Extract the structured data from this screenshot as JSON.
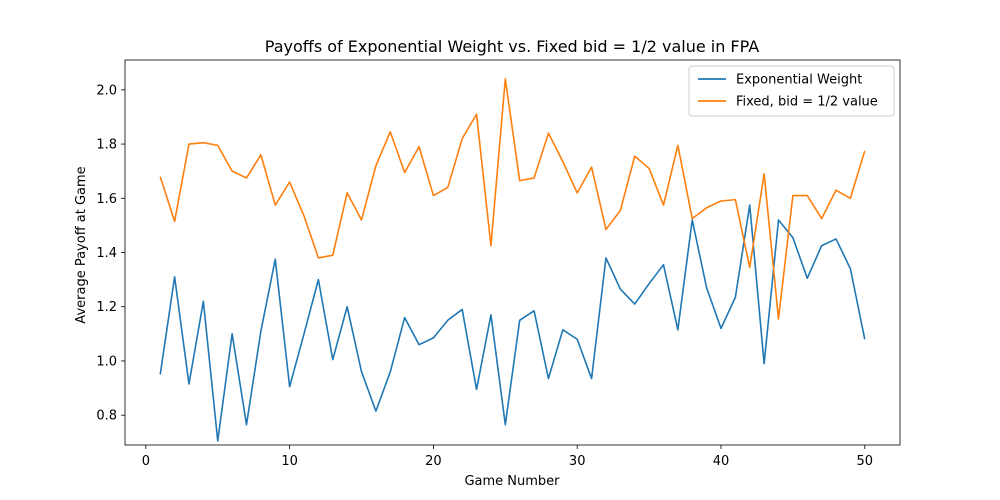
{
  "chart_data": {
    "type": "line",
    "title": "Payoffs of Exponential Weight vs. Fixed bid = 1/2 value in FPA",
    "xlabel": "Game Number",
    "ylabel": "Average Payoff at Game",
    "xlim": [
      -1.45,
      52.45
    ],
    "ylim": [
      0.69,
      2.11
    ],
    "xticks": [
      0,
      10,
      20,
      30,
      40,
      50
    ],
    "yticks": [
      0.8,
      1.0,
      1.2,
      1.4,
      1.6,
      1.8,
      2.0
    ],
    "xtick_labels": [
      "0",
      "10",
      "20",
      "30",
      "40",
      "50"
    ],
    "ytick_labels": [
      "0.8",
      "1.0",
      "1.2",
      "1.4",
      "1.6",
      "1.8",
      "2.0"
    ],
    "grid": false,
    "legend_position": "top-right",
    "x": [
      1,
      2,
      3,
      4,
      5,
      6,
      7,
      8,
      9,
      10,
      11,
      12,
      13,
      14,
      15,
      16,
      17,
      18,
      19,
      20,
      21,
      22,
      23,
      24,
      25,
      26,
      27,
      28,
      29,
      30,
      31,
      32,
      33,
      34,
      35,
      36,
      37,
      38,
      39,
      40,
      41,
      42,
      43,
      44,
      45,
      46,
      47,
      48,
      49,
      50
    ],
    "series": [
      {
        "name": "Exponential Weight",
        "color": "#1f77b4",
        "values": [
          0.95,
          1.31,
          0.915,
          1.22,
          0.705,
          1.1,
          0.765,
          1.11,
          1.375,
          0.905,
          1.1,
          1.3,
          1.005,
          1.2,
          0.96,
          0.815,
          0.96,
          1.16,
          1.06,
          1.085,
          1.15,
          1.19,
          0.895,
          1.17,
          0.765,
          1.15,
          1.185,
          0.935,
          1.115,
          1.08,
          0.935,
          1.38,
          1.265,
          1.21,
          1.285,
          1.355,
          1.115,
          1.52,
          1.27,
          1.12,
          1.235,
          1.575,
          0.99,
          1.52,
          1.455,
          1.305,
          1.425,
          1.45,
          1.34,
          1.08
        ]
      },
      {
        "name": "Fixed, bid = 1/2 value",
        "color": "#ff7f0e",
        "values": [
          1.68,
          1.515,
          1.8,
          1.805,
          1.795,
          1.7,
          1.675,
          1.76,
          1.575,
          1.66,
          1.535,
          1.38,
          1.39,
          1.62,
          1.52,
          1.72,
          1.845,
          1.695,
          1.79,
          1.61,
          1.64,
          1.82,
          1.91,
          1.425,
          2.04,
          1.665,
          1.675,
          1.84,
          1.735,
          1.62,
          1.715,
          1.485,
          1.555,
          1.755,
          1.71,
          1.575,
          1.795,
          1.525,
          1.565,
          1.59,
          1.595,
          1.345,
          1.69,
          1.155,
          1.61,
          1.61,
          1.525,
          1.63,
          1.6,
          1.775
        ]
      }
    ]
  }
}
